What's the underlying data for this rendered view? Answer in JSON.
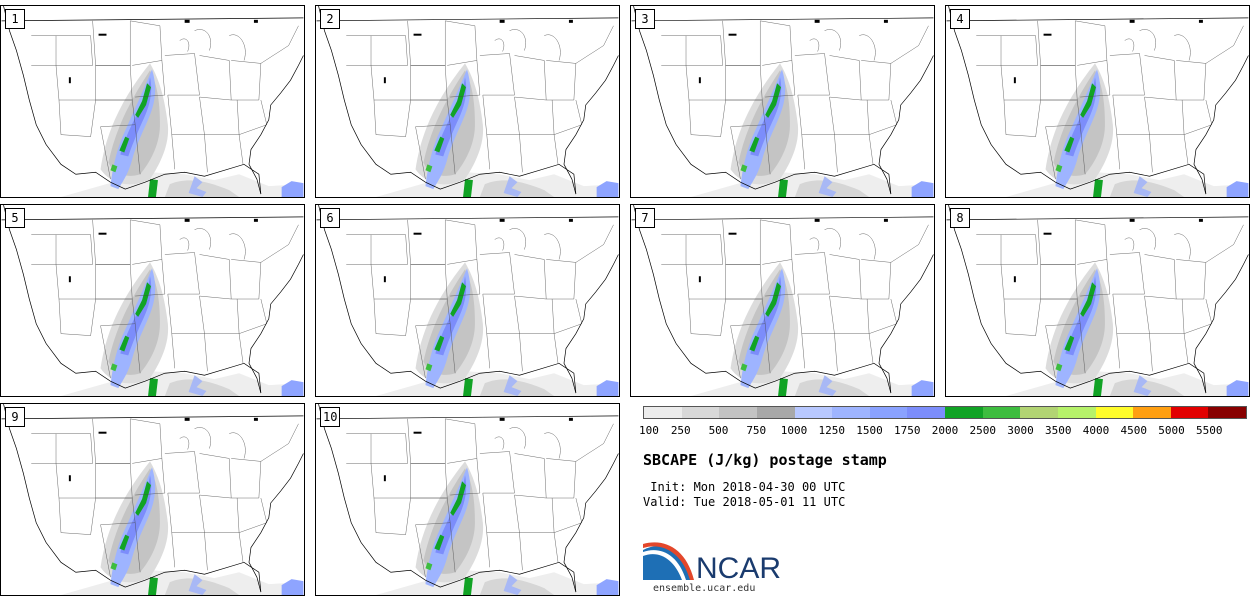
{
  "panels": [
    {
      "label": "1"
    },
    {
      "label": "2"
    },
    {
      "label": "3"
    },
    {
      "label": "4"
    },
    {
      "label": "5"
    },
    {
      "label": "6"
    },
    {
      "label": "7"
    },
    {
      "label": "8"
    },
    {
      "label": "9"
    },
    {
      "label": "10"
    }
  ],
  "colorbar": {
    "colors": [
      "#ececec",
      "#d8d8d8",
      "#c3c3c3",
      "#a8a8a8",
      "#b8c8ff",
      "#9eb4ff",
      "#8aa2ff",
      "#7c8dfb",
      "#11a325",
      "#3ebd3f",
      "#b2d473",
      "#b6f26a",
      "#fffc2a",
      "#ff9f11",
      "#e20000",
      "#880000"
    ],
    "labels": [
      "100",
      "250",
      "500",
      "750",
      "1000",
      "1250",
      "1500",
      "1750",
      "2000",
      "2500",
      "3000",
      "3500",
      "4000",
      "4500",
      "5000",
      "5500"
    ]
  },
  "title": "SBCAPE (J/kg) postage stamp",
  "init": " Init: Mon 2018-04-30 00 UTC",
  "valid": "Valid: Tue 2018-05-01 11 UTC",
  "logo": {
    "text": "NCAR"
  },
  "url": "ensemble.ucar.edu"
}
